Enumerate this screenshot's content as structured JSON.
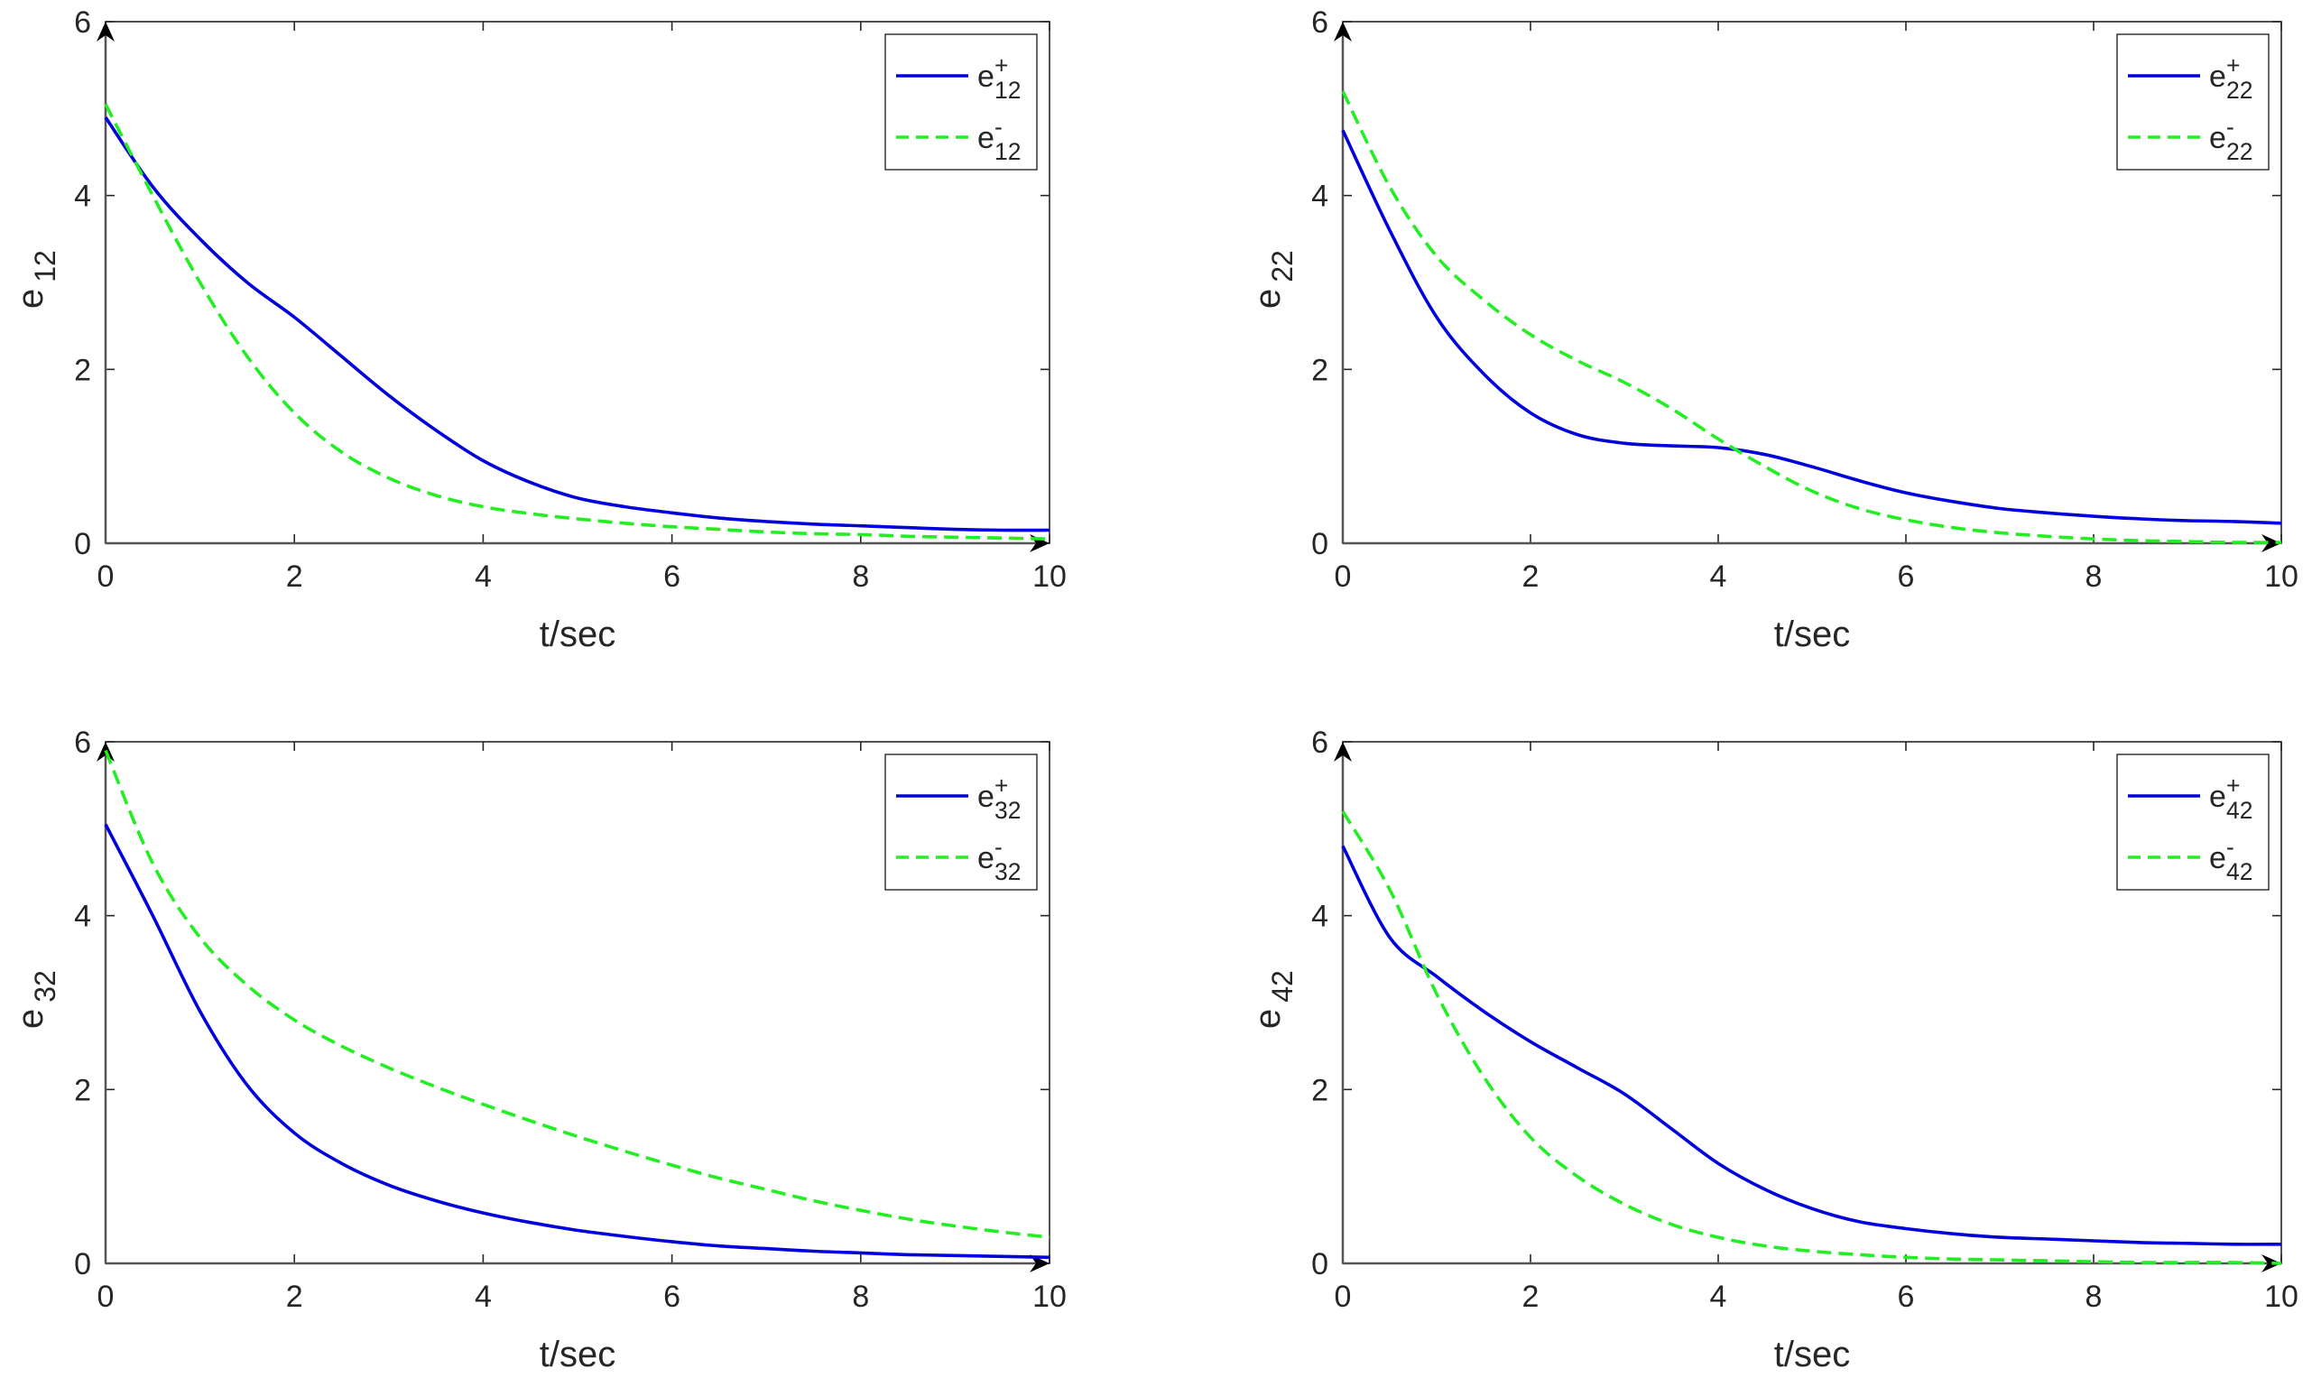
{
  "colors": {
    "series_plus": "#0000dd",
    "series_minus": "#22ee22",
    "axis": "#262626",
    "zero_line": "#555555",
    "background": "#ffffff"
  },
  "chart_data": [
    {
      "type": "line",
      "id": "e12",
      "xlabel": "t/sec",
      "ylabel": {
        "base": "e",
        "sub": "12"
      },
      "xlim": [
        0,
        10
      ],
      "ylim": [
        0,
        6
      ],
      "xticks": [
        0,
        2,
        4,
        6,
        8,
        10
      ],
      "yticks": [
        0,
        2,
        4,
        6
      ],
      "legend_position": "top-right",
      "x": [
        0,
        0.5,
        1,
        1.5,
        2,
        2.5,
        3,
        3.5,
        4,
        4.5,
        5,
        5.5,
        6,
        6.5,
        7,
        7.5,
        8,
        8.5,
        9,
        9.5,
        10
      ],
      "series": [
        {
          "name": "e12+",
          "label": {
            "base": "e",
            "sup": "+",
            "sub": "12"
          },
          "style": "solid",
          "values": [
            4.9,
            4.1,
            3.5,
            3.0,
            2.6,
            2.15,
            1.7,
            1.3,
            0.95,
            0.7,
            0.52,
            0.42,
            0.35,
            0.29,
            0.25,
            0.22,
            0.2,
            0.18,
            0.16,
            0.15,
            0.15
          ]
        },
        {
          "name": "e12-",
          "label": {
            "base": "e",
            "sup": "-",
            "sub": "12"
          },
          "style": "dashed",
          "values": [
            5.05,
            4.0,
            3.0,
            2.15,
            1.5,
            1.05,
            0.75,
            0.55,
            0.42,
            0.34,
            0.28,
            0.23,
            0.19,
            0.16,
            0.13,
            0.11,
            0.1,
            0.08,
            0.07,
            0.06,
            0.05
          ]
        }
      ]
    },
    {
      "type": "line",
      "id": "e22",
      "xlabel": "t/sec",
      "ylabel": {
        "base": "e",
        "sub": "22"
      },
      "xlim": [
        0,
        10
      ],
      "ylim": [
        0,
        6
      ],
      "xticks": [
        0,
        2,
        4,
        6,
        8,
        10
      ],
      "yticks": [
        0,
        2,
        4,
        6
      ],
      "legend_position": "top-right",
      "x": [
        0,
        0.5,
        1,
        1.5,
        2,
        2.5,
        3,
        3.5,
        4,
        4.5,
        5,
        5.5,
        6,
        6.5,
        7,
        7.5,
        8,
        8.5,
        9,
        9.5,
        10
      ],
      "series": [
        {
          "name": "e22+",
          "label": {
            "base": "e",
            "sup": "+",
            "sub": "22"
          },
          "style": "solid",
          "values": [
            4.75,
            3.6,
            2.6,
            1.95,
            1.5,
            1.25,
            1.15,
            1.12,
            1.1,
            1.02,
            0.88,
            0.72,
            0.58,
            0.48,
            0.4,
            0.35,
            0.31,
            0.28,
            0.26,
            0.25,
            0.23
          ]
        },
        {
          "name": "e22-",
          "label": {
            "base": "e",
            "sup": "-",
            "sub": "22"
          },
          "style": "dashed",
          "values": [
            5.2,
            4.1,
            3.3,
            2.8,
            2.4,
            2.1,
            1.85,
            1.55,
            1.2,
            0.88,
            0.6,
            0.4,
            0.27,
            0.18,
            0.12,
            0.08,
            0.05,
            0.03,
            0.02,
            0.01,
            0.01
          ]
        }
      ]
    },
    {
      "type": "line",
      "id": "e32",
      "xlabel": "t/sec",
      "ylabel": {
        "base": "e",
        "sub": "32"
      },
      "xlim": [
        0,
        10
      ],
      "ylim": [
        0,
        6
      ],
      "xticks": [
        0,
        2,
        4,
        6,
        8,
        10
      ],
      "yticks": [
        0,
        2,
        4,
        6
      ],
      "legend_position": "top-right",
      "x": [
        0,
        0.5,
        1,
        1.5,
        2,
        2.5,
        3,
        3.5,
        4,
        4.5,
        5,
        5.5,
        6,
        6.5,
        7,
        7.5,
        8,
        8.5,
        9,
        9.5,
        10
      ],
      "series": [
        {
          "name": "e32+",
          "label": {
            "base": "e",
            "sup": "+",
            "sub": "32"
          },
          "style": "solid",
          "values": [
            5.05,
            4.0,
            2.9,
            2.05,
            1.5,
            1.15,
            0.9,
            0.72,
            0.58,
            0.47,
            0.38,
            0.31,
            0.25,
            0.2,
            0.17,
            0.14,
            0.12,
            0.1,
            0.09,
            0.08,
            0.07
          ]
        },
        {
          "name": "e32-",
          "label": {
            "base": "e",
            "sup": "-",
            "sub": "32"
          },
          "style": "dashed",
          "values": [
            5.9,
            4.6,
            3.75,
            3.2,
            2.8,
            2.5,
            2.25,
            2.03,
            1.83,
            1.64,
            1.46,
            1.29,
            1.13,
            0.98,
            0.85,
            0.72,
            0.61,
            0.51,
            0.43,
            0.36,
            0.3
          ]
        }
      ]
    },
    {
      "type": "line",
      "id": "e42",
      "xlabel": "t/sec",
      "ylabel": {
        "base": "e",
        "sub": "42"
      },
      "xlim": [
        0,
        10
      ],
      "ylim": [
        0,
        6
      ],
      "xticks": [
        0,
        2,
        4,
        6,
        8,
        10
      ],
      "yticks": [
        0,
        2,
        4,
        6
      ],
      "legend_position": "top-right",
      "x": [
        0,
        0.5,
        1,
        1.5,
        2,
        2.5,
        3,
        3.5,
        4,
        4.5,
        5,
        5.5,
        6,
        6.5,
        7,
        7.5,
        8,
        8.5,
        9,
        9.5,
        10
      ],
      "series": [
        {
          "name": "e42+",
          "label": {
            "base": "e",
            "sup": "+",
            "sub": "42"
          },
          "style": "solid",
          "values": [
            4.8,
            3.75,
            3.3,
            2.9,
            2.55,
            2.25,
            1.95,
            1.55,
            1.15,
            0.85,
            0.63,
            0.48,
            0.4,
            0.34,
            0.3,
            0.28,
            0.26,
            0.24,
            0.23,
            0.22,
            0.22
          ]
        },
        {
          "name": "e42-",
          "label": {
            "base": "e",
            "sup": "-",
            "sub": "42"
          },
          "style": "dashed",
          "values": [
            5.2,
            4.3,
            3.1,
            2.15,
            1.45,
            1.0,
            0.68,
            0.45,
            0.3,
            0.2,
            0.14,
            0.1,
            0.07,
            0.05,
            0.04,
            0.03,
            0.02,
            0.01,
            0.01,
            0.01,
            0.0
          ]
        }
      ]
    }
  ]
}
